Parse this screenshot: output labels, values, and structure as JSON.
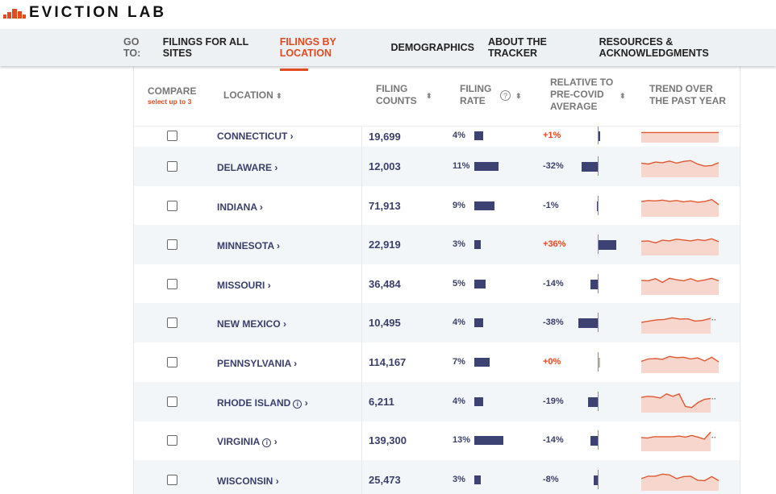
{
  "brand": {
    "name": "EVICTION LAB",
    "color": "#e24a1f"
  },
  "nav": {
    "goto": "GO TO:",
    "items": [
      "FILINGS FOR ALL SITES",
      "FILINGS BY LOCATION",
      "DEMOGRAPHICS",
      "ABOUT THE TRACKER",
      "RESOURCES & ACKNOWLEDGMENTS"
    ],
    "active": 1
  },
  "header": {
    "compare": "COMPARE",
    "compare_sub": "select up to 3",
    "location": "LOCATION",
    "counts": [
      "FILING",
      "COUNTS"
    ],
    "rate": [
      "FILING",
      "RATE"
    ],
    "relative": [
      "RELATIVE TO",
      "PRE-COVID",
      "AVERAGE"
    ],
    "trend": [
      "TREND OVER",
      "THE PAST YEAR"
    ],
    "sort_icon": "⬍",
    "help_icon": "?"
  },
  "rows": [
    {
      "location": "CONNECTICUT",
      "count": "19,699",
      "rate": "4%",
      "rate_value": 4,
      "relative": "+1%",
      "relative_value": 1,
      "info": false,
      "trend": [
        0.5,
        0.5,
        0.5,
        0.5,
        0.5,
        0.5,
        0.5,
        0.5
      ],
      "partial": false
    },
    {
      "location": "DELAWARE",
      "count": "12,003",
      "rate": "11%",
      "rate_value": 11,
      "relative": "-32%",
      "relative_value": -32,
      "info": false,
      "trend": [
        0.7,
        0.65,
        0.75,
        0.72,
        0.8,
        0.7,
        0.78,
        0.82,
        0.65,
        0.55,
        0.58,
        0.72
      ]
    },
    {
      "location": "INDIANA",
      "count": "71,913",
      "rate": "9%",
      "rate_value": 9,
      "relative": "-1%",
      "relative_value": -1,
      "info": false,
      "trend": [
        0.75,
        0.8,
        0.78,
        0.82,
        0.76,
        0.8,
        0.74,
        0.78,
        0.72,
        0.75,
        0.85,
        0.6
      ]
    },
    {
      "location": "MINNESOTA",
      "count": "22,919",
      "rate": "3%",
      "rate_value": 3,
      "relative": "+36%",
      "relative_value": 36,
      "info": false,
      "trend": [
        0.7,
        0.72,
        0.62,
        0.75,
        0.72,
        0.8,
        0.76,
        0.72,
        0.78,
        0.74,
        0.82,
        0.68
      ]
    },
    {
      "location": "MISSOURI",
      "count": "36,484",
      "rate": "5%",
      "rate_value": 5,
      "relative": "-14%",
      "relative_value": -14,
      "info": false,
      "trend": [
        0.72,
        0.7,
        0.8,
        0.62,
        0.82,
        0.75,
        0.7,
        0.8,
        0.68,
        0.74,
        0.82,
        0.7
      ]
    },
    {
      "location": "NEW MEXICO",
      "count": "10,495",
      "rate": "4%",
      "rate_value": 4,
      "relative": "-38%",
      "relative_value": -38,
      "info": false,
      "trend": [
        0.55,
        0.62,
        0.68,
        0.7,
        0.78,
        0.72,
        0.73,
        0.62,
        0.65,
        0.75
      ],
      "partial": true
    },
    {
      "location": "PENNSYLVANIA",
      "count": "114,167",
      "rate": "7%",
      "rate_value": 7,
      "relative": "+0%",
      "relative_value": 0,
      "info": false,
      "trend": [
        0.58,
        0.7,
        0.72,
        0.68,
        0.82,
        0.76,
        0.78,
        0.7,
        0.75,
        0.6,
        0.78,
        0.55
      ]
    },
    {
      "location": "RHODE ISLAND",
      "count": "6,211",
      "rate": "4%",
      "rate_value": 4,
      "relative": "-19%",
      "relative_value": -19,
      "info": true,
      "trend": [
        0.75,
        0.8,
        0.78,
        0.72,
        0.92,
        0.8,
        0.92,
        0.3,
        0.25,
        0.5,
        0.65,
        0.7
      ],
      "partial": true
    },
    {
      "location": "VIRGINIA",
      "count": "139,300",
      "rate": "13%",
      "rate_value": 13,
      "relative": "-14%",
      "relative_value": -14,
      "info": true,
      "trend": [
        0.68,
        0.65,
        0.72,
        0.72,
        0.72,
        0.72,
        0.75,
        0.7,
        0.78,
        0.7,
        0.6,
        0.95
      ],
      "partial": true
    },
    {
      "location": "WISCONSIN",
      "count": "25,473",
      "rate": "3%",
      "rate_value": 3,
      "relative": "-8%",
      "relative_value": -8,
      "info": false,
      "trend": [
        0.6,
        0.72,
        0.72,
        0.82,
        0.78,
        0.6,
        0.7,
        0.72,
        0.52,
        0.5,
        0.7,
        0.5
      ]
    }
  ]
}
